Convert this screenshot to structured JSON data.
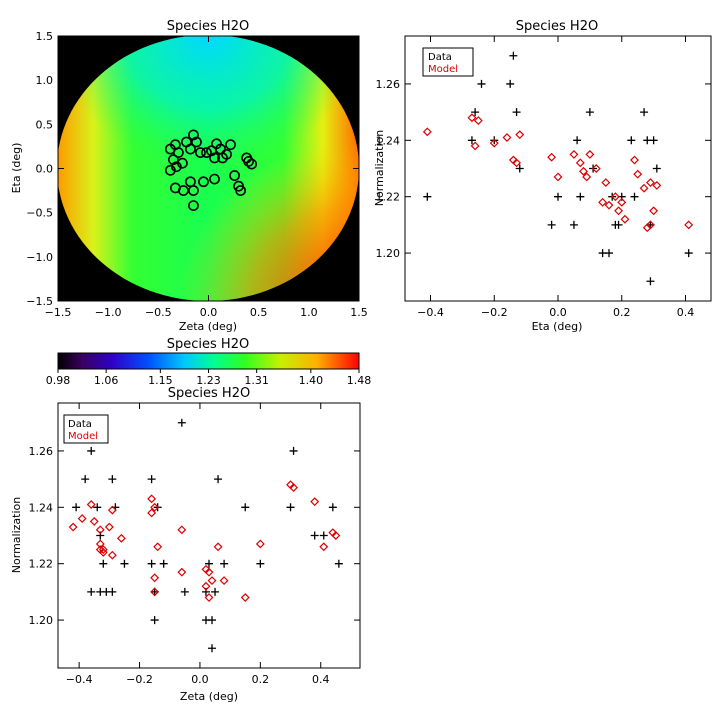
{
  "chart_data": [
    {
      "id": "map",
      "type": "heatmap",
      "title": "Species H2O",
      "xlabel": "Zeta (deg)",
      "ylabel": "Eta (deg)",
      "xlim": [
        -1.5,
        1.5
      ],
      "ylim": [
        -1.5,
        1.5
      ],
      "xticks": [
        "−1.5",
        "−1.0",
        "−0.5",
        "0.0",
        "0.5",
        "1.0",
        "1.5"
      ],
      "yticks": [
        "−1.5",
        "−1.0",
        "−0.5",
        "0.0",
        "0.5",
        "1.0",
        "1.5"
      ],
      "field_of_view_radius_deg": 1.5,
      "background_color": "#000000",
      "fiber_positions": [
        [
          -0.38,
          0.22
        ],
        [
          -0.33,
          0.27
        ],
        [
          -0.3,
          0.18
        ],
        [
          -0.35,
          0.1
        ],
        [
          -0.32,
          0.02
        ],
        [
          -0.26,
          0.06
        ],
        [
          -0.22,
          0.3
        ],
        [
          -0.18,
          0.22
        ],
        [
          -0.15,
          0.38
        ],
        [
          -0.12,
          0.3
        ],
        [
          -0.08,
          0.18
        ],
        [
          -0.02,
          0.18
        ],
        [
          0.03,
          0.2
        ],
        [
          0.06,
          0.12
        ],
        [
          0.08,
          0.28
        ],
        [
          0.12,
          0.22
        ],
        [
          0.18,
          0.16
        ],
        [
          0.22,
          0.27
        ],
        [
          0.3,
          -0.2
        ],
        [
          0.32,
          -0.25
        ],
        [
          0.4,
          0.08
        ],
        [
          0.43,
          0.05
        ],
        [
          0.38,
          0.12
        ],
        [
          -0.38,
          -0.02
        ],
        [
          -0.33,
          -0.22
        ],
        [
          -0.25,
          -0.25
        ],
        [
          -0.18,
          -0.15
        ],
        [
          -0.15,
          -0.42
        ],
        [
          -0.15,
          -0.25
        ],
        [
          -0.05,
          -0.15
        ],
        [
          0.06,
          -0.12
        ],
        [
          0.14,
          0.12
        ],
        [
          0.26,
          -0.08
        ]
      ]
    },
    {
      "id": "colorbar",
      "type": "colorbar",
      "title": "Species H2O",
      "range": [
        0.98,
        1.48
      ],
      "tick_labels": [
        "0.98",
        "1.06",
        "1.15",
        "1.23",
        "1.31",
        "1.40",
        "1.48"
      ]
    },
    {
      "id": "eta_scatter",
      "type": "scatter",
      "title": "Species H2O",
      "xlabel": "Eta (deg)",
      "ylabel": "Normalization",
      "xlim": [
        -0.48,
        0.48
      ],
      "ylim": [
        1.183,
        1.277
      ],
      "xticks": [
        "−0.4",
        "−0.2",
        "0.0",
        "0.2",
        "0.4"
      ],
      "yticks": [
        "1.20",
        "1.22",
        "1.24",
        "1.26"
      ],
      "legend": [
        "Data",
        "Model"
      ],
      "legend_colors": [
        "#000000",
        "#dd0000"
      ],
      "series": [
        {
          "name": "Data",
          "marker": "plus",
          "color": "#000000",
          "points": [
            [
              -0.41,
              1.22
            ],
            [
              -0.26,
              1.25
            ],
            [
              -0.27,
              1.24
            ],
            [
              -0.24,
              1.26
            ],
            [
              -0.2,
              1.24
            ],
            [
              -0.15,
              1.26
            ],
            [
              -0.14,
              1.27
            ],
            [
              -0.13,
              1.25
            ],
            [
              -0.12,
              1.23
            ],
            [
              -0.02,
              1.21
            ],
            [
              0.0,
              1.22
            ],
            [
              0.05,
              1.21
            ],
            [
              0.06,
              1.24
            ],
            [
              0.07,
              1.22
            ],
            [
              0.1,
              1.25
            ],
            [
              0.11,
              1.23
            ],
            [
              0.14,
              1.2
            ],
            [
              0.16,
              1.2
            ],
            [
              0.17,
              1.22
            ],
            [
              0.18,
              1.21
            ],
            [
              0.19,
              1.21
            ],
            [
              0.2,
              1.22
            ],
            [
              0.23,
              1.24
            ],
            [
              0.24,
              1.22
            ],
            [
              0.27,
              1.25
            ],
            [
              0.28,
              1.24
            ],
            [
              0.29,
              1.19
            ],
            [
              0.29,
              1.21
            ],
            [
              0.3,
              1.24
            ],
            [
              0.31,
              1.23
            ],
            [
              0.41,
              1.2
            ]
          ]
        },
        {
          "name": "Model",
          "marker": "diamond",
          "color": "#dd0000",
          "points": [
            [
              -0.41,
              1.243
            ],
            [
              -0.27,
              1.248
            ],
            [
              -0.26,
              1.238
            ],
            [
              -0.25,
              1.247
            ],
            [
              -0.2,
              1.239
            ],
            [
              -0.16,
              1.241
            ],
            [
              -0.14,
              1.233
            ],
            [
              -0.13,
              1.232
            ],
            [
              -0.12,
              1.242
            ],
            [
              -0.02,
              1.234
            ],
            [
              0.0,
              1.227
            ],
            [
              0.05,
              1.235
            ],
            [
              0.07,
              1.232
            ],
            [
              0.08,
              1.229
            ],
            [
              0.09,
              1.227
            ],
            [
              0.1,
              1.235
            ],
            [
              0.12,
              1.23
            ],
            [
              0.14,
              1.218
            ],
            [
              0.15,
              1.225
            ],
            [
              0.16,
              1.217
            ],
            [
              0.18,
              1.22
            ],
            [
              0.19,
              1.215
            ],
            [
              0.2,
              1.218
            ],
            [
              0.21,
              1.212
            ],
            [
              0.24,
              1.233
            ],
            [
              0.25,
              1.228
            ],
            [
              0.27,
              1.223
            ],
            [
              0.28,
              1.209
            ],
            [
              0.29,
              1.21
            ],
            [
              0.29,
              1.225
            ],
            [
              0.3,
              1.215
            ],
            [
              0.31,
              1.224
            ],
            [
              0.41,
              1.21
            ]
          ]
        }
      ]
    },
    {
      "id": "zeta_scatter",
      "type": "scatter",
      "title": "Species H2O",
      "xlabel": "Zeta (deg)",
      "ylabel": "Normalization",
      "xlim": [
        -0.47,
        0.53
      ],
      "ylim": [
        1.183,
        1.277
      ],
      "xticks": [
        "−0.4",
        "−0.2",
        "0.0",
        "0.2",
        "0.4"
      ],
      "yticks": [
        "1.20",
        "1.22",
        "1.24",
        "1.26"
      ],
      "legend": [
        "Data",
        "Model"
      ],
      "legend_colors": [
        "#000000",
        "#dd0000"
      ],
      "series": [
        {
          "name": "Data",
          "marker": "plus",
          "color": "#000000",
          "points": [
            [
              -0.41,
              1.24
            ],
            [
              -0.38,
              1.25
            ],
            [
              -0.36,
              1.26
            ],
            [
              -0.36,
              1.21
            ],
            [
              -0.34,
              1.24
            ],
            [
              -0.33,
              1.21
            ],
            [
              -0.33,
              1.23
            ],
            [
              -0.32,
              1.22
            ],
            [
              -0.31,
              1.21
            ],
            [
              -0.29,
              1.25
            ],
            [
              -0.29,
              1.21
            ],
            [
              -0.28,
              1.24
            ],
            [
              -0.25,
              1.22
            ],
            [
              -0.16,
              1.25
            ],
            [
              -0.16,
              1.22
            ],
            [
              -0.15,
              1.2
            ],
            [
              -0.15,
              1.21
            ],
            [
              -0.14,
              1.24
            ],
            [
              -0.12,
              1.22
            ],
            [
              -0.06,
              1.27
            ],
            [
              -0.05,
              1.21
            ],
            [
              0.02,
              1.21
            ],
            [
              0.02,
              1.2
            ],
            [
              0.03,
              1.22
            ],
            [
              0.04,
              1.2
            ],
            [
              0.04,
              1.19
            ],
            [
              0.05,
              1.21
            ],
            [
              0.06,
              1.25
            ],
            [
              0.08,
              1.22
            ],
            [
              0.15,
              1.24
            ],
            [
              0.2,
              1.22
            ],
            [
              0.3,
              1.24
            ],
            [
              0.31,
              1.26
            ],
            [
              0.38,
              1.23
            ],
            [
              0.41,
              1.23
            ],
            [
              0.44,
              1.24
            ],
            [
              0.46,
              1.22
            ]
          ]
        },
        {
          "name": "Model",
          "marker": "diamond",
          "color": "#dd0000",
          "points": [
            [
              -0.42,
              1.233
            ],
            [
              -0.39,
              1.236
            ],
            [
              -0.36,
              1.241
            ],
            [
              -0.35,
              1.235
            ],
            [
              -0.33,
              1.227
            ],
            [
              -0.33,
              1.225
            ],
            [
              -0.32,
              1.225
            ],
            [
              -0.32,
              1.224
            ],
            [
              -0.33,
              1.232
            ],
            [
              -0.3,
              1.233
            ],
            [
              -0.29,
              1.239
            ],
            [
              -0.29,
              1.223
            ],
            [
              -0.26,
              1.229
            ],
            [
              -0.16,
              1.243
            ],
            [
              -0.16,
              1.238
            ],
            [
              -0.15,
              1.24
            ],
            [
              -0.14,
              1.226
            ],
            [
              -0.15,
              1.215
            ],
            [
              -0.15,
              1.21
            ],
            [
              -0.06,
              1.232
            ],
            [
              -0.06,
              1.217
            ],
            [
              0.02,
              1.218
            ],
            [
              0.02,
              1.212
            ],
            [
              0.03,
              1.217
            ],
            [
              0.04,
              1.214
            ],
            [
              0.03,
              1.208
            ],
            [
              0.06,
              1.226
            ],
            [
              0.08,
              1.214
            ],
            [
              0.15,
              1.208
            ],
            [
              0.2,
              1.227
            ],
            [
              0.3,
              1.248
            ],
            [
              0.31,
              1.247
            ],
            [
              0.38,
              1.242
            ],
            [
              0.41,
              1.226
            ],
            [
              0.44,
              1.231
            ],
            [
              0.45,
              1.23
            ]
          ]
        }
      ]
    }
  ]
}
